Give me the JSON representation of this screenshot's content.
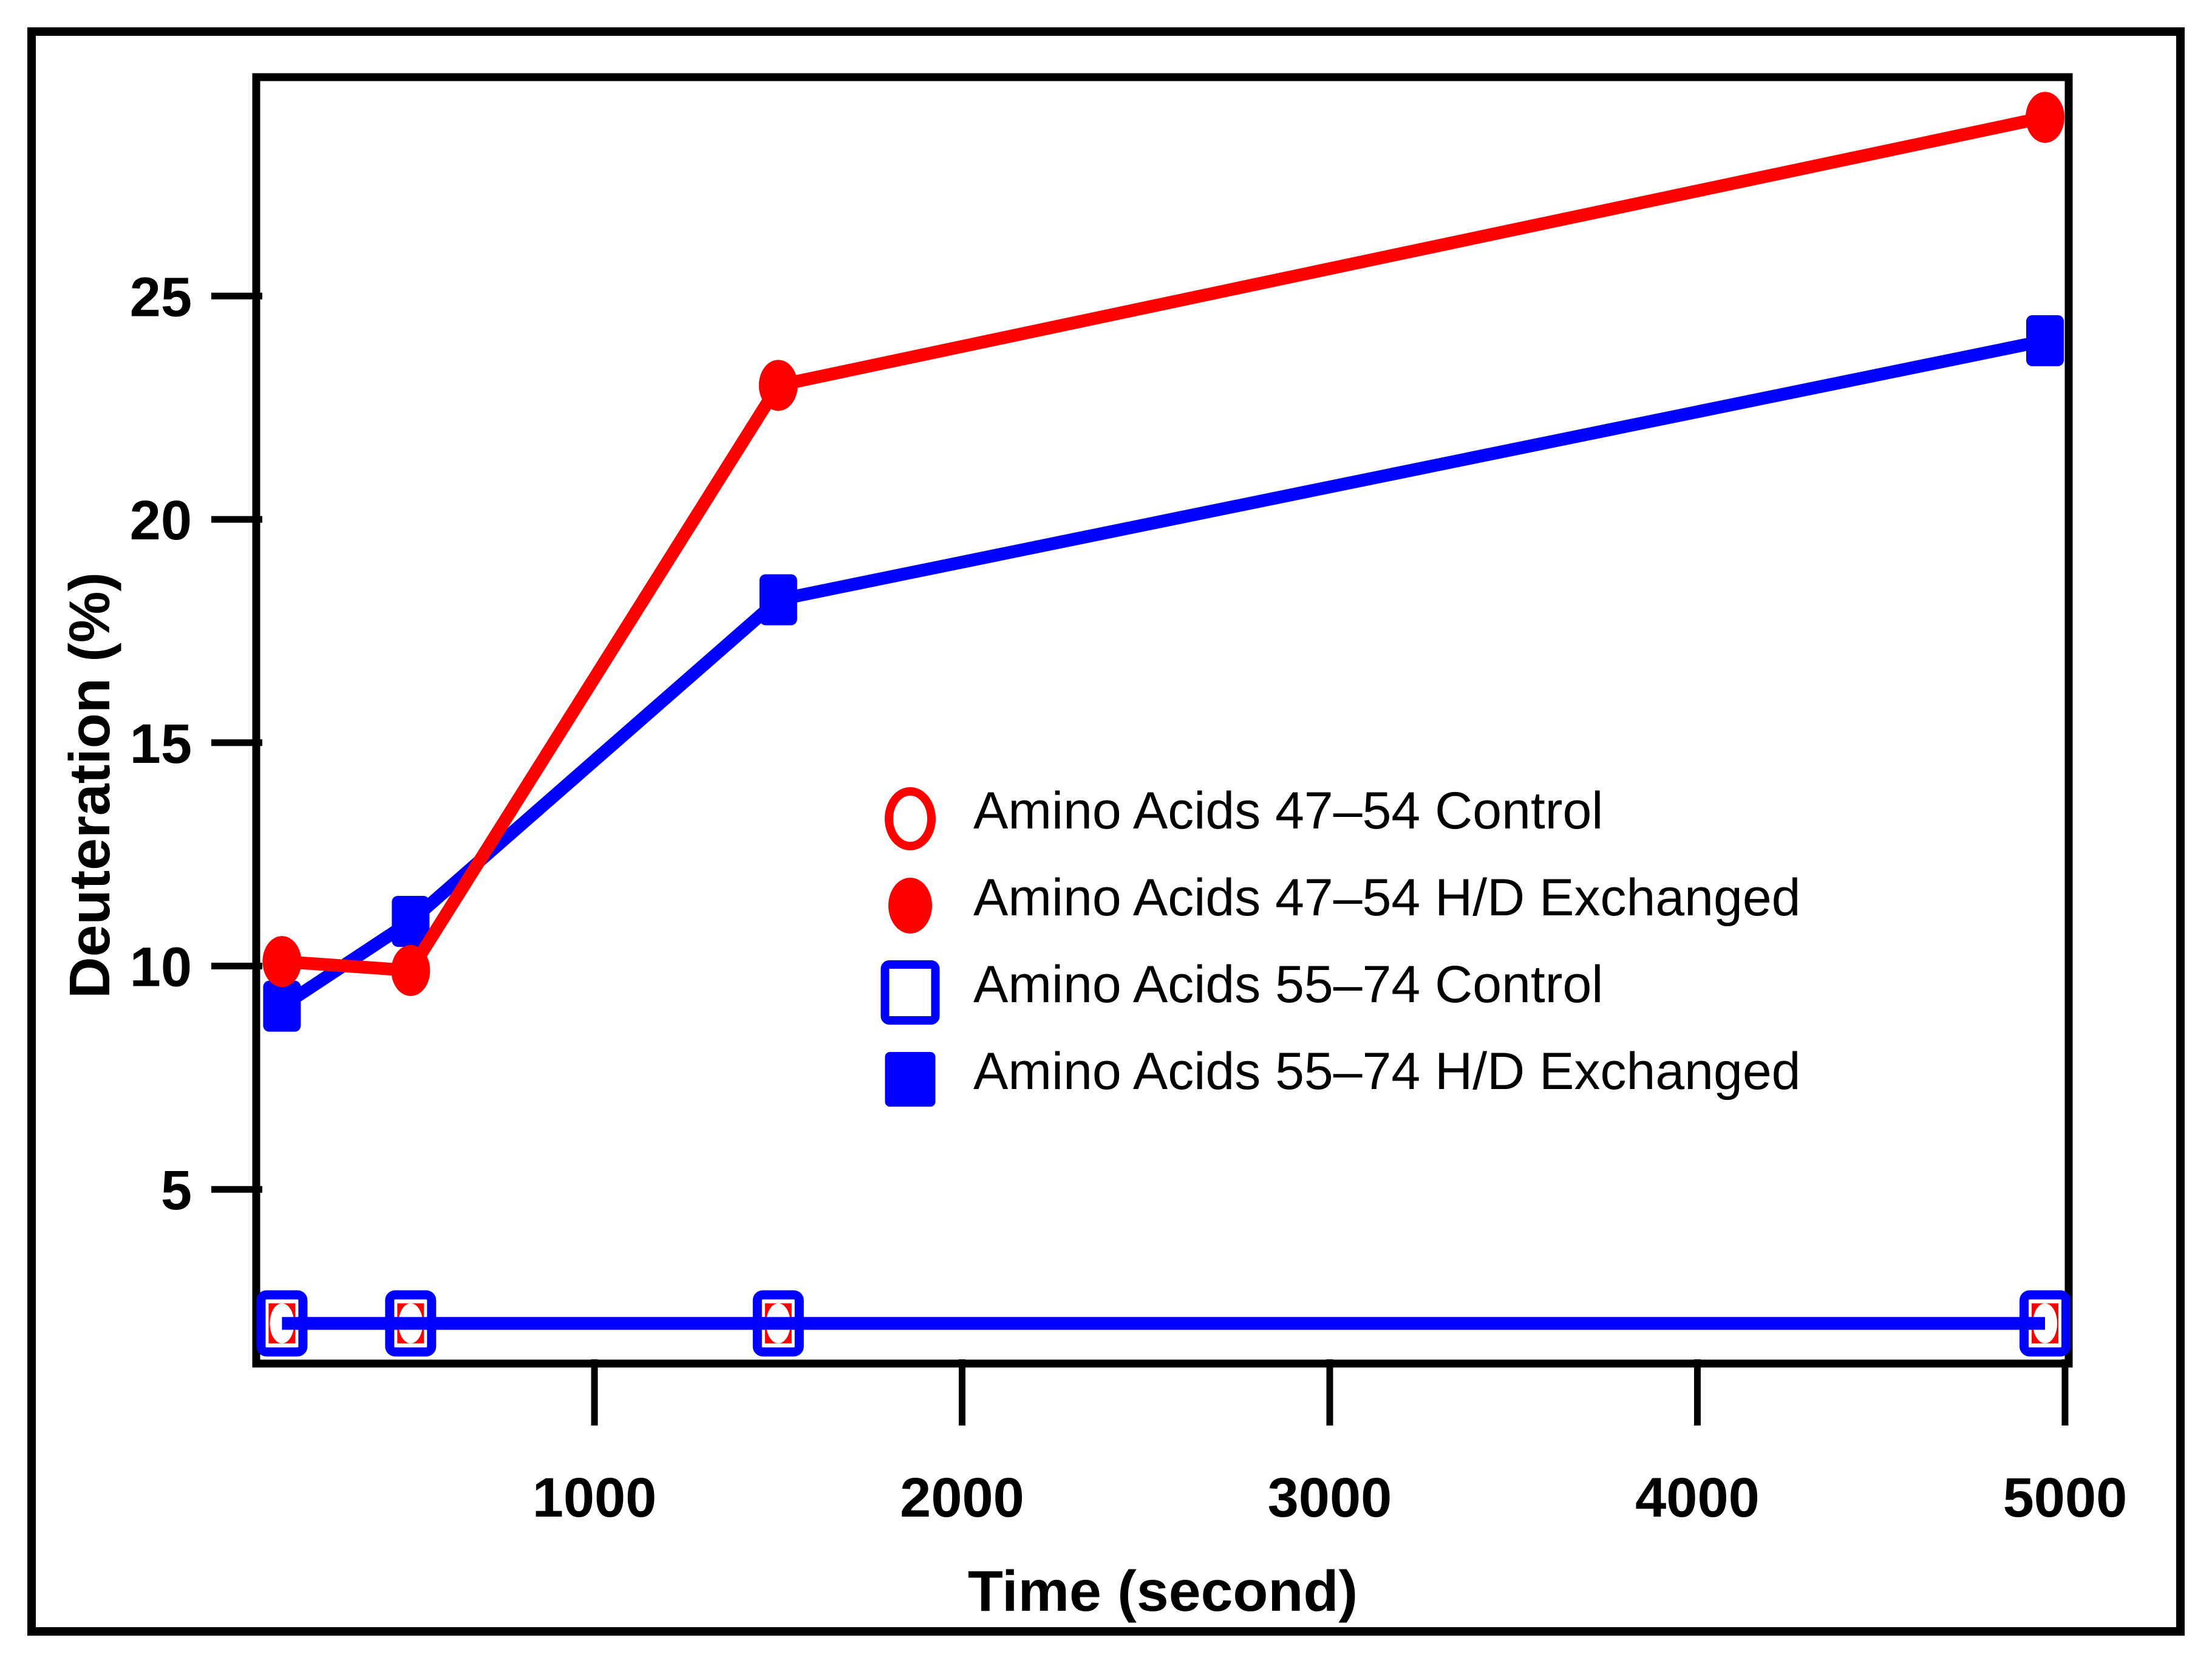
{
  "chart_data": {
    "type": "line",
    "title": "",
    "xlabel": "Time (second)",
    "ylabel": "Deuteration (%)",
    "xlim": [
      80,
      5010
    ],
    "ylim": [
      1.1,
      29.9
    ],
    "xticks": [
      1000,
      2000,
      3000,
      4000,
      5000
    ],
    "yticks": [
      5,
      10,
      15,
      20,
      25
    ],
    "grid": false,
    "legend_position": "middle-right",
    "axis_color": "#000000",
    "background_color": "#ffffff",
    "x": [
      150,
      500,
      1500,
      5000
    ],
    "series": [
      {
        "name": "Amino Acids 47–54 Control",
        "color": "#ff0000",
        "marker": "open-circle",
        "values": [
          2,
          2,
          2,
          2
        ]
      },
      {
        "name": "Amino Acids 47–54 H/D Exchanged",
        "color": "#ff0000",
        "marker": "filled-circle",
        "values": [
          10.1,
          9.9,
          23,
          29
        ]
      },
      {
        "name": "Amino Acids 55–74 Control",
        "color": "#0000ff",
        "marker": "open-square",
        "values": [
          2,
          2,
          2,
          2
        ]
      },
      {
        "name": "Amino Acids 55–74 H/D Exchanged",
        "color": "#0000ff",
        "marker": "filled-square",
        "values": [
          9.1,
          11,
          18.2,
          24
        ]
      }
    ]
  }
}
